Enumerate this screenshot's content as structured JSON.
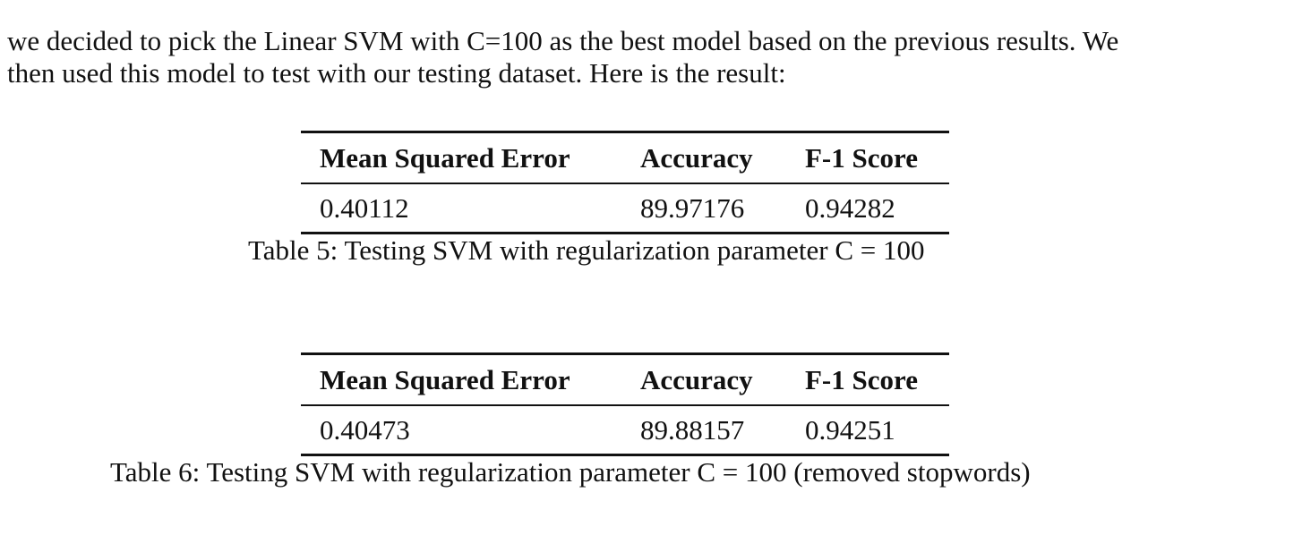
{
  "paragraph": {
    "lines": [
      "we decided to pick the Linear SVM with C=100 as the best model based on the previous results. We",
      "then used this model to test with our testing dataset. Here is the result:"
    ]
  },
  "tables": [
    {
      "headers": [
        "Mean Squared Error",
        "Accuracy",
        "F-1 Score"
      ],
      "row": [
        "0.40112",
        "89.97176",
        "0.94282"
      ],
      "caption": "Table 5: Testing SVM with regularization parameter C = 100"
    },
    {
      "headers": [
        "Mean Squared Error",
        "Accuracy",
        "F-1 Score"
      ],
      "row": [
        "0.40473",
        "89.88157",
        "0.94251"
      ],
      "caption": "Table 6: Testing SVM with regularization parameter C = 100 (removed stopwords)"
    }
  ]
}
